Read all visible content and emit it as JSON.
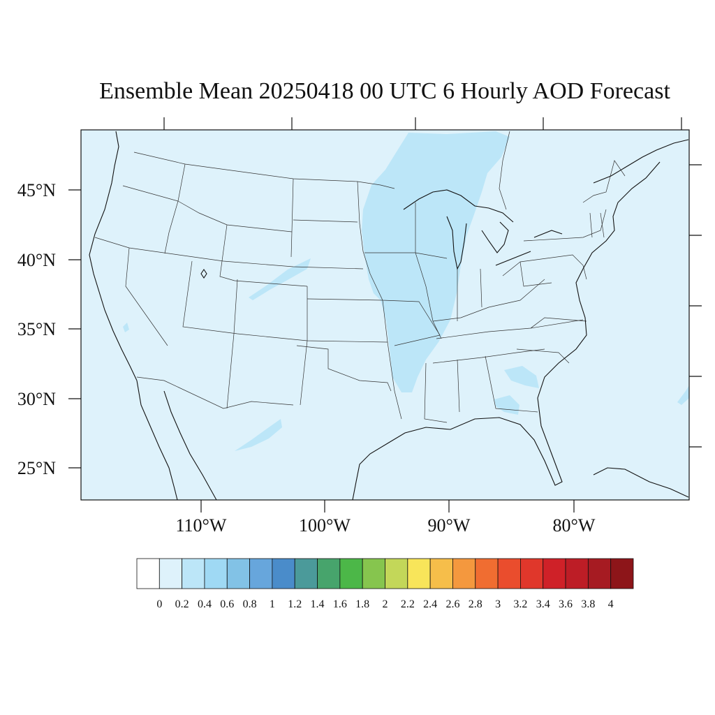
{
  "title": "Ensemble Mean 20250418 00 UTC 6 Hourly AOD Forecast",
  "map": {
    "projection": "lambert-conformal",
    "ocean_color": "#def2fb",
    "lat_labels": [
      "45°N",
      "40°N",
      "35°N",
      "30°N",
      "25°N"
    ],
    "lon_labels": [
      "110°W",
      "100°W",
      "90°W",
      "80°W"
    ]
  },
  "colorbar": {
    "labels": [
      "0",
      "0.2",
      "0.4",
      "0.6",
      "0.8",
      "1",
      "1.2",
      "1.4",
      "1.6",
      "1.8",
      "2",
      "2.2",
      "2.4",
      "2.6",
      "2.8",
      "3",
      "3.2",
      "3.4",
      "3.6",
      "3.8",
      "4"
    ],
    "colors": [
      "#ffffff",
      "#def2fb",
      "#bce6f8",
      "#9fd9f4",
      "#82c2e6",
      "#67a6dc",
      "#4a8cca",
      "#4b9a9a",
      "#47a46c",
      "#4cb748",
      "#86c54e",
      "#c3d759",
      "#f8e55a",
      "#f6be4a",
      "#f4983e",
      "#f06d31",
      "#ea4d2d",
      "#e0372b",
      "#cf2128",
      "#bd1d26",
      "#a61b22",
      "#8d1519"
    ]
  }
}
